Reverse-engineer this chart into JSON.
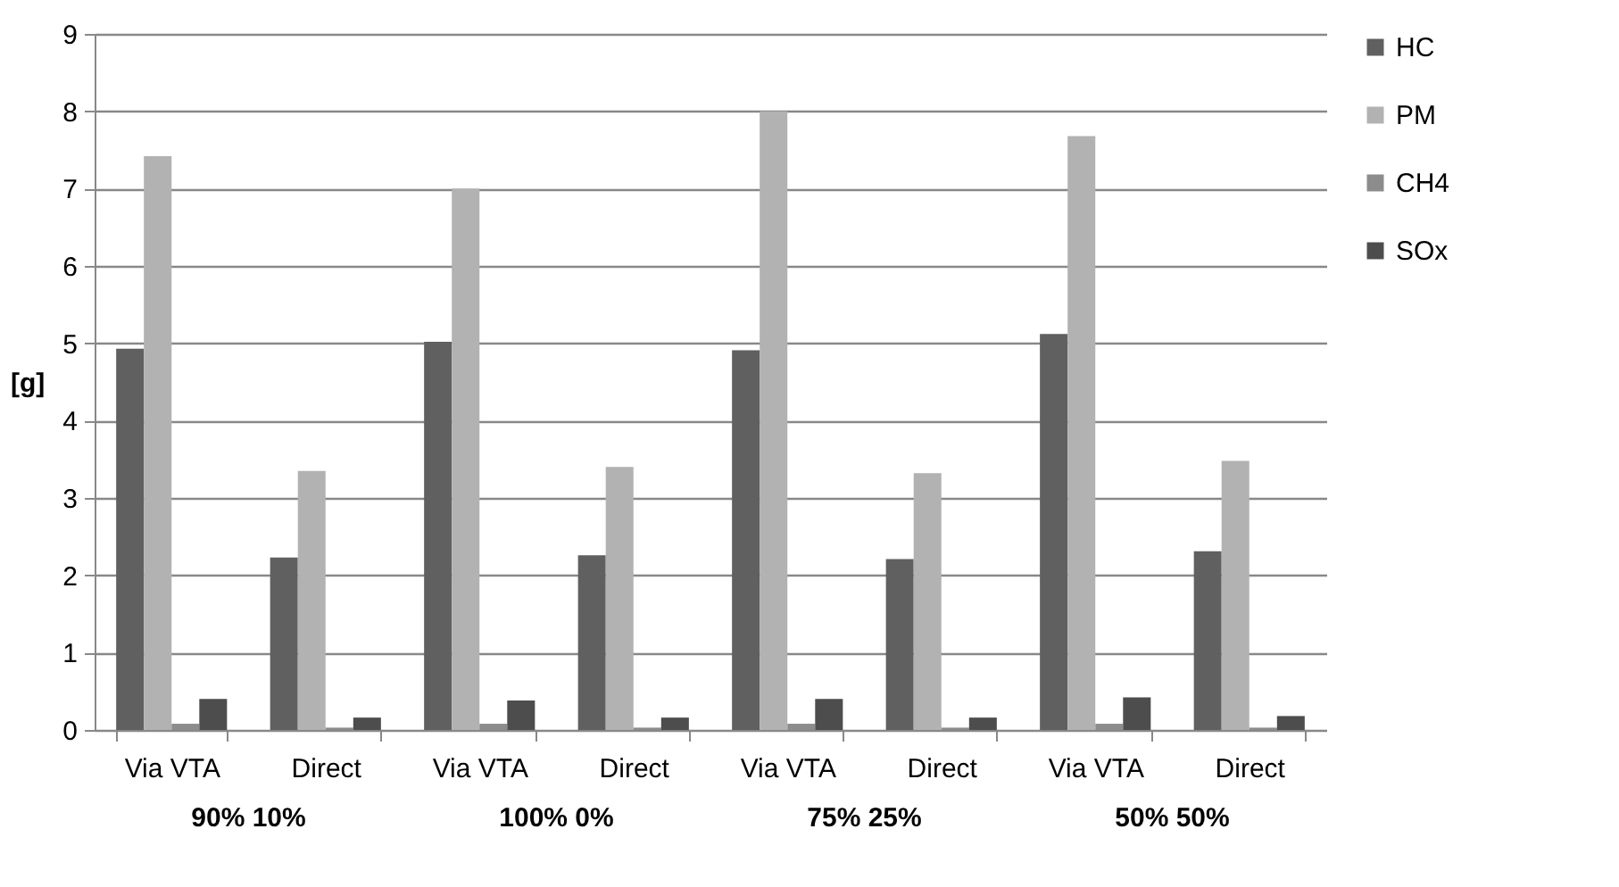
{
  "chart_data": {
    "type": "bar",
    "ylabel": "[g]",
    "categories": [
      "Via VTA",
      "Direct",
      "Via VTA",
      "Direct",
      "Via VTA",
      "Direct",
      "Via VTA",
      "Direct"
    ],
    "series": [
      {
        "name": "HC",
        "color": "#606060",
        "values": [
          4.93,
          2.23,
          5.02,
          2.26,
          4.91,
          2.21,
          5.12,
          2.31
        ]
      },
      {
        "name": "PM",
        "color": "#b2b2b2",
        "values": [
          7.42,
          3.35,
          7.0,
          3.4,
          8.0,
          3.32,
          7.68,
          3.48
        ]
      },
      {
        "name": "CH4",
        "color": "#8c8c8c",
        "values": [
          0.08,
          0.03,
          0.08,
          0.03,
          0.08,
          0.03,
          0.08,
          0.03
        ]
      },
      {
        "name": "SOx",
        "color": "#4d4d4d",
        "values": [
          0.4,
          0.16,
          0.38,
          0.16,
          0.4,
          0.16,
          0.42,
          0.18
        ]
      }
    ],
    "annotations": [
      "90% 10%",
      "100% 0%",
      "75% 25%",
      "50% 50%"
    ],
    "ylim": [
      0,
      9
    ],
    "yticks": [
      0,
      1,
      2,
      3,
      4,
      5,
      6,
      7,
      8,
      9
    ],
    "grid": "y",
    "legend": "right"
  }
}
